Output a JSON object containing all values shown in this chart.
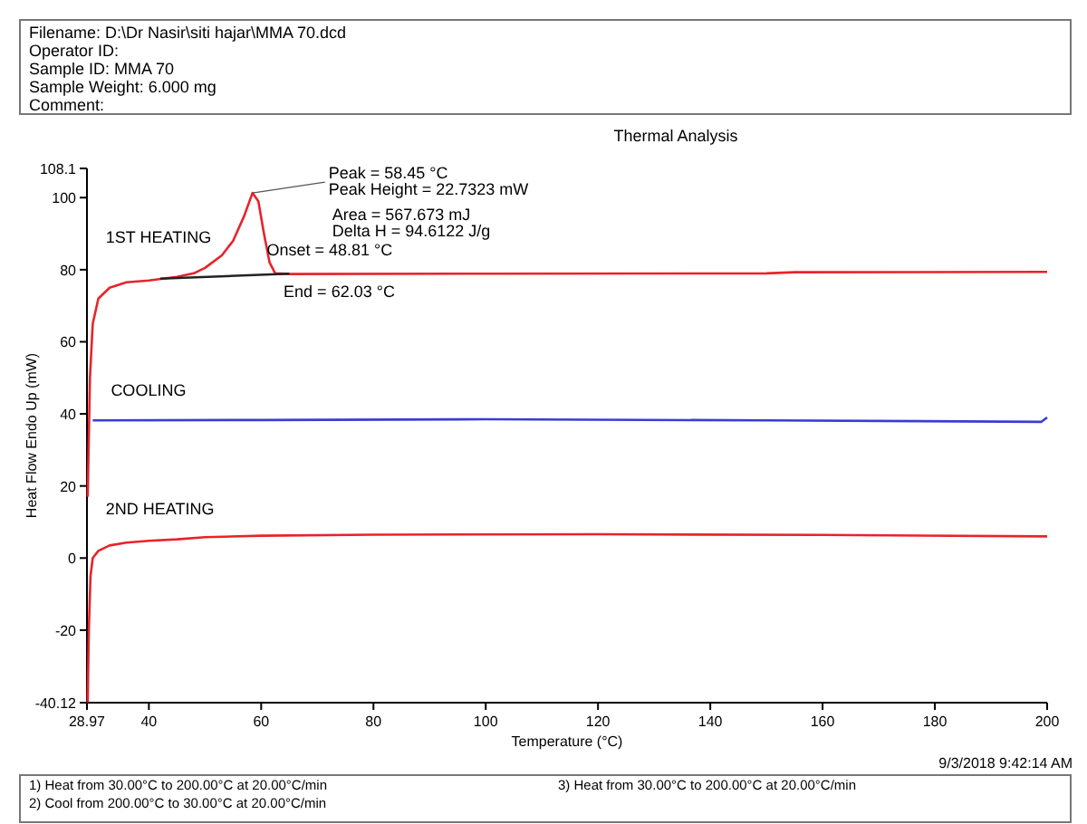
{
  "chart_data": {
    "type": "line",
    "title": "Thermal Analysis",
    "xlabel": "Temperature (°C)",
    "ylabel": "Heat Flow Endo Up (mW)",
    "xlim": [
      28.97,
      200
    ],
    "ylim": [
      -40.12,
      108.1
    ],
    "xticks": [
      28.97,
      40,
      60,
      80,
      100,
      120,
      140,
      160,
      180,
      200
    ],
    "yticks": [
      -40.12,
      -20,
      0,
      20,
      40,
      60,
      80,
      100,
      108.1
    ],
    "grid": false,
    "marker": "none",
    "line_style": "solid",
    "series": [
      {
        "name": "1ST HEATING",
        "color": "#e8232a",
        "x": [
          29.1,
          29.5,
          30,
          31,
          33,
          36,
          40,
          45,
          48,
          50,
          53,
          55,
          57,
          58.45,
          59.5,
          60.5,
          61.5,
          62.5,
          65,
          100,
          150,
          155,
          200
        ],
        "values": [
          17,
          50,
          65,
          72,
          75,
          76.5,
          77,
          78,
          79,
          80.5,
          84,
          88,
          95,
          101.3,
          99,
          90,
          82,
          79,
          78.8,
          78.9,
          79,
          79.3,
          79.4
        ]
      },
      {
        "color": "#222222",
        "x": [
          42,
          65
        ],
        "values": [
          77.5,
          78.9
        ]
      },
      {
        "name": "COOLING",
        "color": "#3b3bd6",
        "x": [
          30,
          60,
          100,
          150,
          199,
          200
        ],
        "values": [
          38.2,
          38.3,
          38.5,
          38.2,
          37.8,
          39
        ]
      },
      {
        "name": "2ND HEATING",
        "color": "#e8232a",
        "x": [
          29.1,
          29.3,
          29.6,
          30,
          31,
          33,
          36,
          40,
          45,
          50,
          60,
          80,
          120,
          160,
          200
        ],
        "values": [
          -40,
          -20,
          -5,
          0,
          2,
          3.5,
          4.3,
          4.8,
          5.2,
          5.8,
          6.2,
          6.5,
          6.6,
          6.4,
          6.0
        ]
      }
    ],
    "annotations": [
      "Filename:     D:\\Dr Nasir\\siti hajar\\MMA 70.dcd",
      "Operator ID:",
      "Sample ID:     MMA 70",
      "Sample Weight:  6.000 mg",
      "Comment:",
      {
        "text": "Peak = 58.45 °C",
        "x": 58.45,
        "y": 101.3
      },
      "Peak Height = 22.7323 mW",
      "Area = 567.673 mJ",
      "Delta H = 94.6122 J/g",
      "Onset = 48.81 °C",
      "End = 62.03 °C",
      "9/3/2018 9:42:14 AM",
      "1)  Heat from 30.00°C to 200.00°C at 20.00°C/min",
      "2)  Cool from 200.00°C to 30.00°C at 20.00°C/min",
      "3)  Heat from 30.00°C to 200.00°C at 20.00°C/min"
    ]
  }
}
